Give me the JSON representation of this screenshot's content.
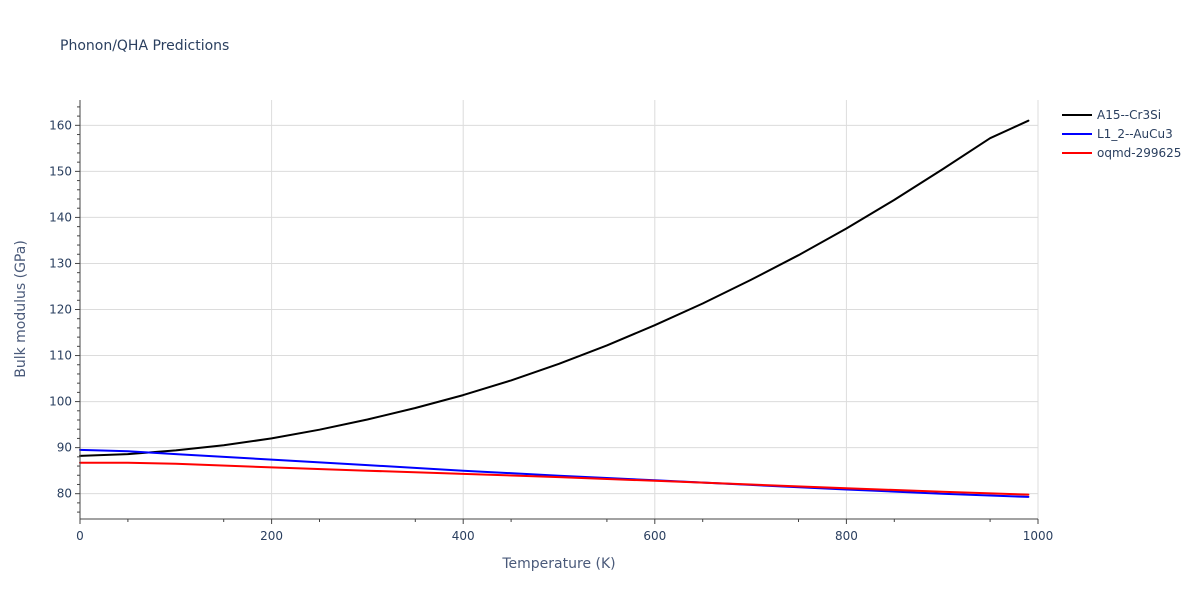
{
  "chart_data": {
    "type": "line",
    "title": "Phonon/QHA Predictions",
    "xlabel": "Temperature (K)",
    "ylabel": "Bulk modulus (GPa)",
    "xlim": [
      0,
      1000
    ],
    "ylim": [
      74.5,
      165.5
    ],
    "xticks": [
      0,
      200,
      400,
      600,
      800,
      1000
    ],
    "yticks": [
      80,
      90,
      100,
      110,
      120,
      130,
      140,
      150,
      160
    ],
    "grid": true,
    "legend_position": "top-right",
    "series": [
      {
        "name": "A15--Cr3Si",
        "color": "#000000",
        "x": [
          0,
          50,
          100,
          150,
          200,
          250,
          300,
          350,
          400,
          450,
          500,
          550,
          600,
          650,
          700,
          750,
          800,
          850,
          900,
          950,
          990
        ],
        "y": [
          88.2,
          88.6,
          89.4,
          90.5,
          92.0,
          93.9,
          96.1,
          98.6,
          101.4,
          104.6,
          108.2,
          112.2,
          116.6,
          121.3,
          126.4,
          131.8,
          137.6,
          143.8,
          150.4,
          157.2,
          161.0
        ]
      },
      {
        "name": "L1_2--AuCu3",
        "color": "#0000ff",
        "x": [
          0,
          50,
          100,
          200,
          300,
          400,
          500,
          600,
          700,
          800,
          900,
          990
        ],
        "y": [
          89.5,
          89.2,
          88.6,
          87.4,
          86.2,
          85.0,
          83.9,
          82.9,
          81.9,
          80.9,
          80.0,
          79.3
        ]
      },
      {
        "name": "oqmd-299625",
        "color": "#ff0000",
        "x": [
          0,
          50,
          100,
          200,
          300,
          400,
          500,
          600,
          700,
          800,
          900,
          990
        ],
        "y": [
          86.7,
          86.7,
          86.5,
          85.7,
          85.0,
          84.3,
          83.6,
          82.8,
          82.0,
          81.2,
          80.4,
          79.8
        ]
      }
    ]
  }
}
